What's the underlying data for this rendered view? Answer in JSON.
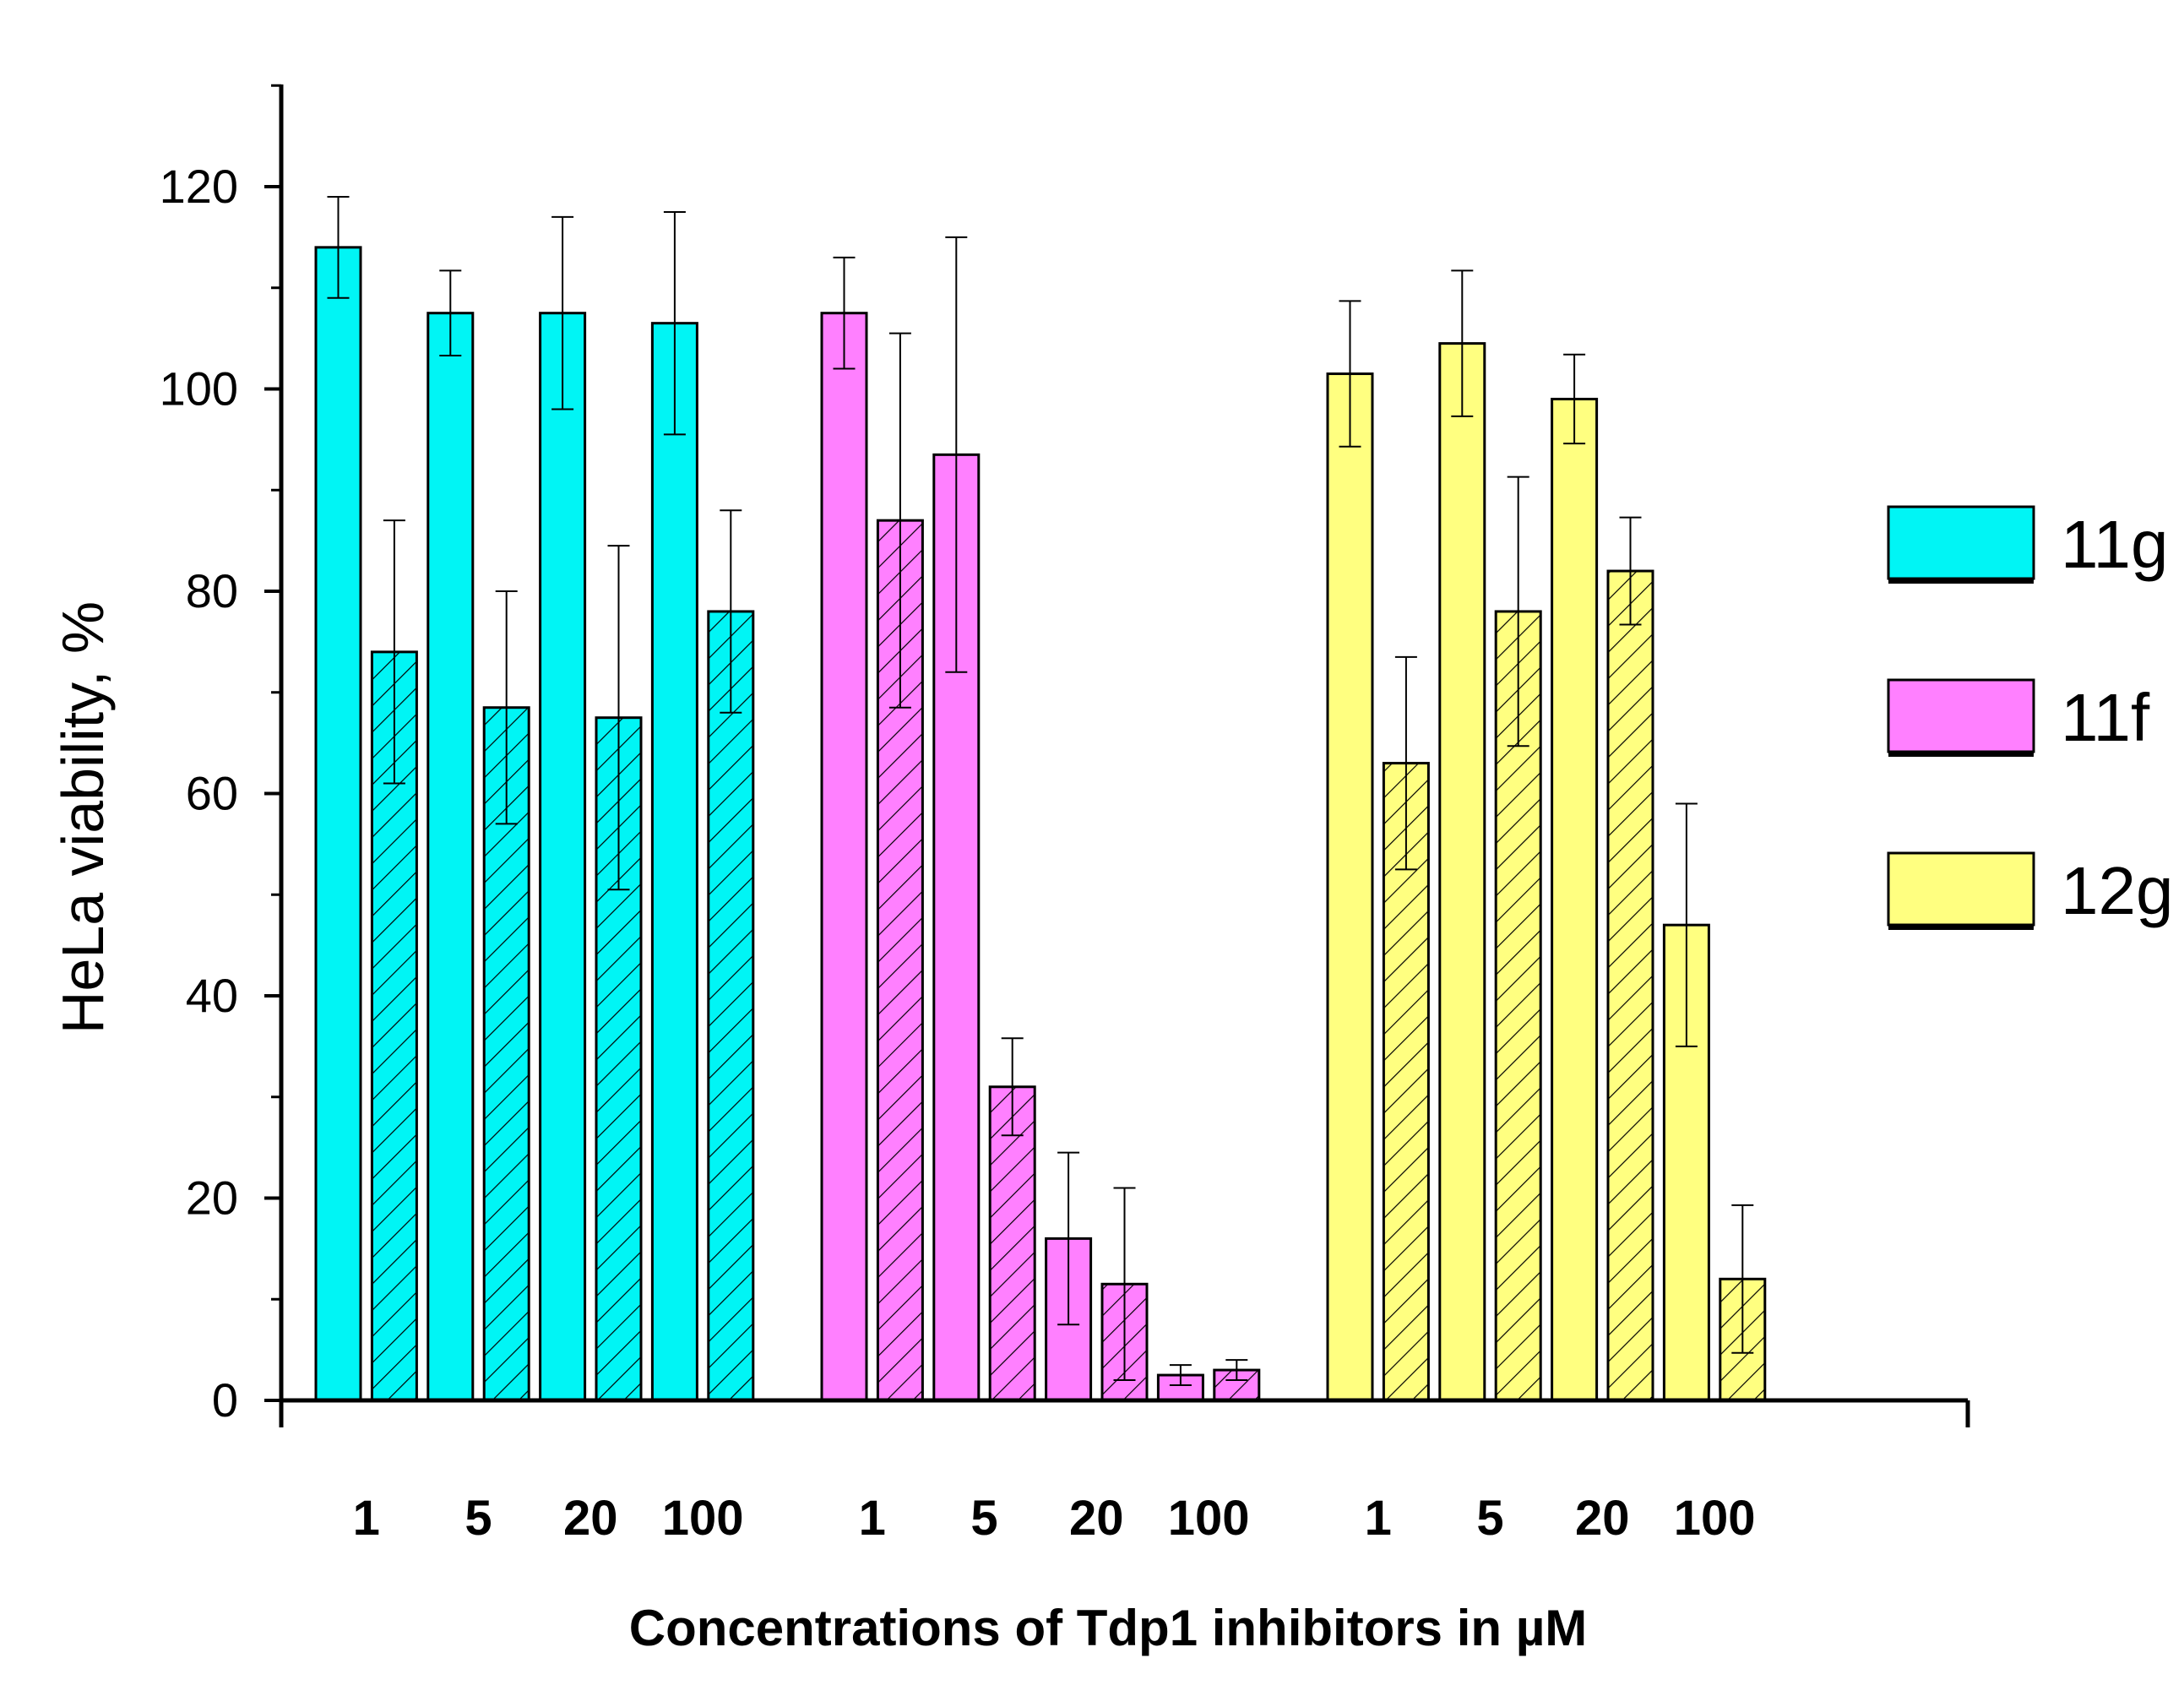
{
  "chart_data": {
    "type": "bar",
    "title": "",
    "xlabel": "Concentrations of Tdp1 inhibitors in µM",
    "ylabel": "HeLa viability, %",
    "ylim": [
      0,
      130
    ],
    "yticks": [
      0,
      20,
      40,
      60,
      80,
      100,
      120
    ],
    "grid": false,
    "legend_position": "right",
    "concentration_labels": [
      "1",
      "5",
      "20",
      "100"
    ],
    "series": [
      {
        "name": "11g",
        "color": "#00f5f5",
        "solid_values": [
          114,
          107.5,
          107.5,
          106.5
        ],
        "solid_errors": [
          5,
          4.2,
          9.5,
          11
        ],
        "hatched_values": [
          74,
          68.5,
          67.5,
          78
        ],
        "hatched_errors": [
          13,
          11.5,
          17,
          10
        ]
      },
      {
        "name": "11f",
        "color": "#ff80ff",
        "solid_values": [
          107.5,
          93.5,
          16,
          2.5
        ],
        "solid_errors": [
          5.5,
          21.5,
          8.5,
          1
        ],
        "hatched_values": [
          87,
          31,
          11.5,
          3
        ],
        "hatched_errors": [
          18.5,
          4.8,
          9.5,
          1
        ]
      },
      {
        "name": "12g",
        "color": "#ffff80",
        "solid_values": [
          101.5,
          104.5,
          99,
          47
        ],
        "solid_errors": [
          7.2,
          7.2,
          4.4,
          12
        ],
        "hatched_values": [
          63,
          78,
          82,
          12
        ],
        "hatched_errors": [
          10.5,
          13.3,
          5.3,
          7.3
        ]
      }
    ]
  }
}
